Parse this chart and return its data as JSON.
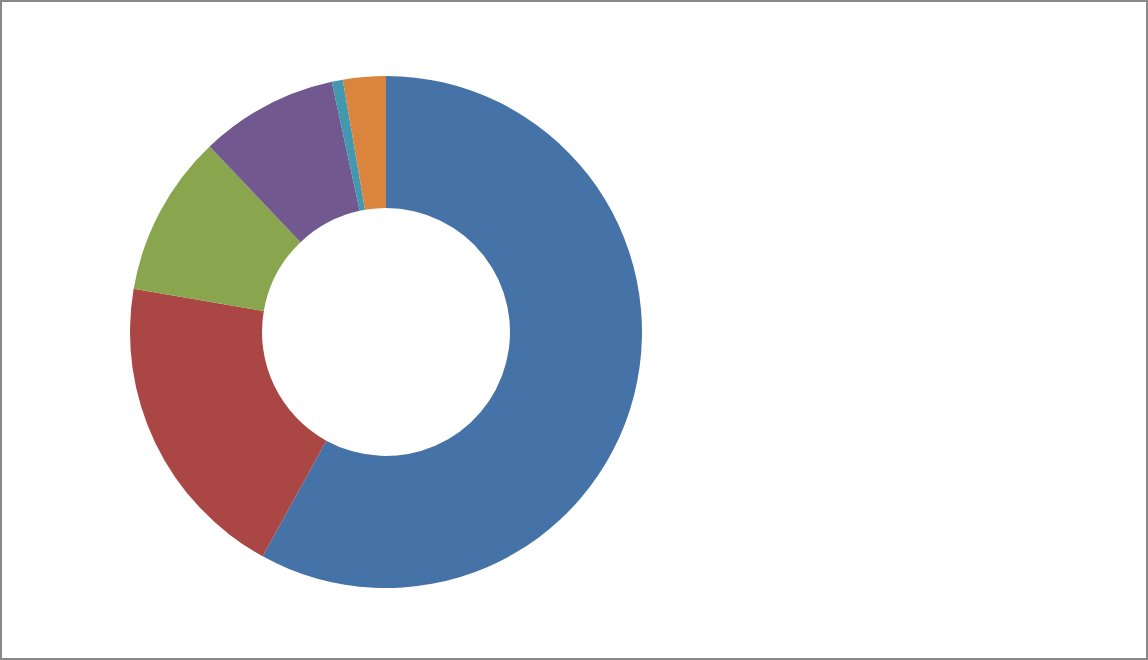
{
  "chart_data": {
    "type": "donut",
    "categories": [
      null,
      null,
      null,
      null,
      null,
      null
    ],
    "values": [
      58.0,
      19.7,
      10.2,
      8.7,
      0.7,
      2.7
    ],
    "colors": [
      "#4572a7",
      "#aa4643",
      "#89a54e",
      "#71588f",
      "#4198af",
      "#db843d"
    ]
  }
}
